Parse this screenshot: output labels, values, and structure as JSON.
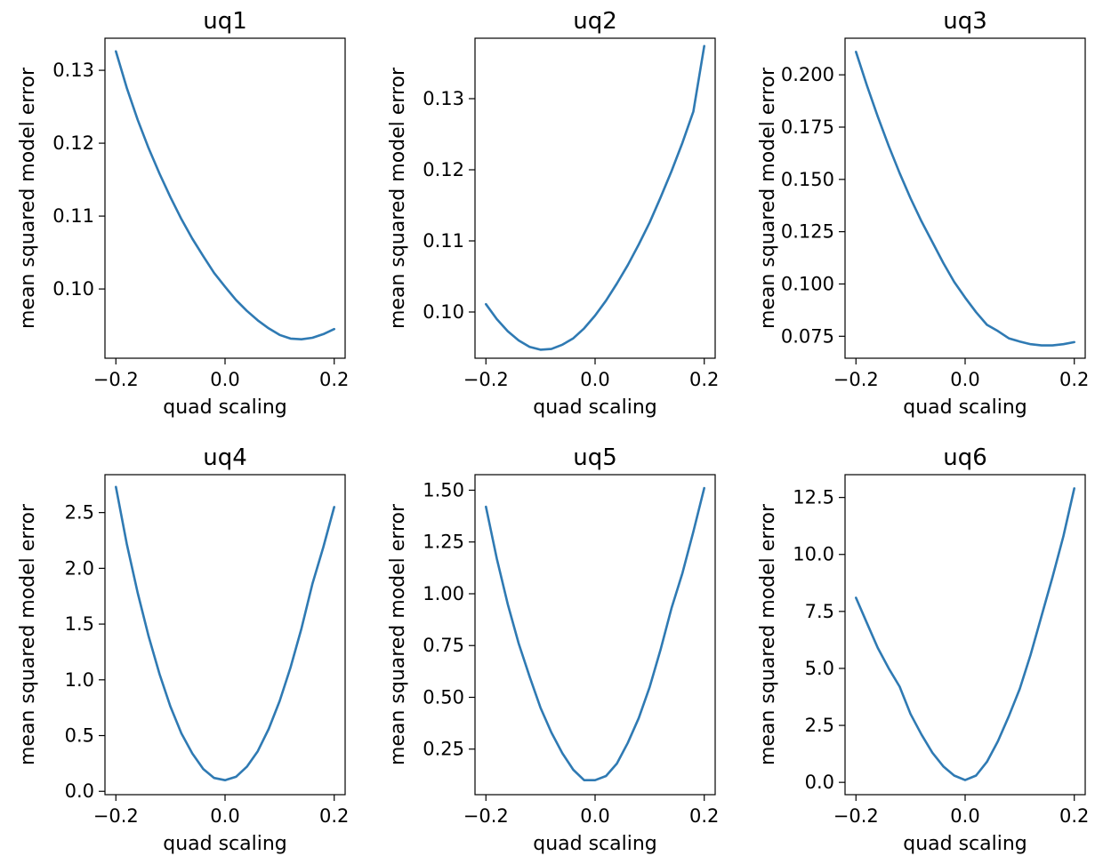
{
  "chart_data": [
    {
      "type": "line",
      "title": "uq1",
      "xlabel": "quad scaling",
      "ylabel": "mean squared model error",
      "xlim": [
        -0.22,
        0.22
      ],
      "ylim": [
        0.0905,
        0.1344
      ],
      "xticks": [
        -0.2,
        0.0,
        0.2
      ],
      "xtick_labels": [
        "−0.2",
        "0.0",
        "0.2"
      ],
      "yticks": [
        0.1,
        0.11,
        0.12,
        0.13
      ],
      "ytick_labels": [
        "0.10",
        "0.11",
        "0.12",
        "0.13"
      ],
      "grid": false,
      "series": [
        {
          "color": "#2f7ab3",
          "x": [
            -0.2,
            -0.18,
            -0.16,
            -0.14,
            -0.12,
            -0.1,
            -0.08,
            -0.06,
            -0.04,
            -0.02,
            0.0,
            0.02,
            0.04,
            0.06,
            0.08,
            0.1,
            0.12,
            0.14,
            0.16,
            0.18,
            0.2
          ],
          "y": [
            0.1326,
            0.1276,
            0.1232,
            0.1193,
            0.1158,
            0.1126,
            0.1096,
            0.1069,
            0.1045,
            0.1022,
            0.1003,
            0.0985,
            0.097,
            0.0957,
            0.0946,
            0.0937,
            0.0932,
            0.0931,
            0.0933,
            0.0938,
            0.0945
          ]
        }
      ]
    },
    {
      "type": "line",
      "title": "uq2",
      "xlabel": "quad scaling",
      "ylabel": "mean squared model error",
      "xlim": [
        -0.22,
        0.22
      ],
      "ylim": [
        0.0935,
        0.1385
      ],
      "xticks": [
        -0.2,
        0.0,
        0.2
      ],
      "xtick_labels": [
        "−0.2",
        "0.0",
        "0.2"
      ],
      "yticks": [
        0.1,
        0.11,
        0.12,
        0.13
      ],
      "ytick_labels": [
        "0.10",
        "0.11",
        "0.12",
        "0.13"
      ],
      "grid": false,
      "series": [
        {
          "color": "#2f7ab3",
          "x": [
            -0.2,
            -0.18,
            -0.16,
            -0.14,
            -0.12,
            -0.1,
            -0.08,
            -0.06,
            -0.04,
            -0.02,
            0.0,
            0.02,
            0.04,
            0.06,
            0.08,
            0.1,
            0.12,
            0.14,
            0.16,
            0.18,
            0.2
          ],
          "y": [
            0.1011,
            0.099,
            0.0973,
            0.096,
            0.0951,
            0.0947,
            0.0948,
            0.0954,
            0.0963,
            0.0977,
            0.0995,
            0.1016,
            0.104,
            0.1066,
            0.1095,
            0.1126,
            0.1161,
            0.1198,
            0.1238,
            0.1282,
            0.1374
          ]
        }
      ]
    },
    {
      "type": "line",
      "title": "uq3",
      "xlabel": "quad scaling",
      "ylabel": "mean squared model error",
      "xlim": [
        -0.22,
        0.22
      ],
      "ylim": [
        0.0645,
        0.2175
      ],
      "xticks": [
        -0.2,
        0.0,
        0.2
      ],
      "xtick_labels": [
        "−0.2",
        "0.0",
        "0.2"
      ],
      "yticks": [
        0.075,
        0.1,
        0.125,
        0.15,
        0.175,
        0.2
      ],
      "ytick_labels": [
        "0.075",
        "0.100",
        "0.125",
        "0.150",
        "0.175",
        "0.200"
      ],
      "grid": false,
      "series": [
        {
          "color": "#2f7ab3",
          "x": [
            -0.2,
            -0.18,
            -0.16,
            -0.14,
            -0.12,
            -0.1,
            -0.08,
            -0.06,
            -0.04,
            -0.02,
            0.0,
            0.02,
            0.04,
            0.06,
            0.08,
            0.1,
            0.12,
            0.14,
            0.16,
            0.18,
            0.2
          ],
          "y": [
            0.211,
            0.195,
            0.18,
            0.166,
            0.153,
            0.141,
            0.13,
            0.12,
            0.11,
            0.101,
            0.0935,
            0.0865,
            0.0805,
            0.0775,
            0.074,
            0.0725,
            0.0712,
            0.0706,
            0.0706,
            0.0712,
            0.0722
          ]
        }
      ]
    },
    {
      "type": "line",
      "title": "uq4",
      "xlabel": "quad scaling",
      "ylabel": "mean squared model error",
      "xlim": [
        -0.22,
        0.22
      ],
      "ylim": [
        -0.03,
        2.84
      ],
      "xticks": [
        -0.2,
        0.0,
        0.2
      ],
      "xtick_labels": [
        "−0.2",
        "0.0",
        "0.2"
      ],
      "yticks": [
        0.0,
        0.5,
        1.0,
        1.5,
        2.0,
        2.5
      ],
      "ytick_labels": [
        "0.0",
        "0.5",
        "1.0",
        "1.5",
        "2.0",
        "2.5"
      ],
      "grid": false,
      "series": [
        {
          "color": "#2f7ab3",
          "x": [
            -0.2,
            -0.18,
            -0.16,
            -0.14,
            -0.12,
            -0.1,
            -0.08,
            -0.06,
            -0.04,
            -0.02,
            0.0,
            0.02,
            0.04,
            0.06,
            0.08,
            0.1,
            0.12,
            0.14,
            0.16,
            0.18,
            0.2
          ],
          "y": [
            2.73,
            2.22,
            1.78,
            1.39,
            1.05,
            0.76,
            0.52,
            0.34,
            0.2,
            0.12,
            0.1,
            0.13,
            0.22,
            0.36,
            0.56,
            0.81,
            1.11,
            1.46,
            1.86,
            2.19,
            2.55
          ]
        }
      ]
    },
    {
      "type": "line",
      "title": "uq5",
      "xlabel": "quad scaling",
      "ylabel": "mean squared model error",
      "xlim": [
        -0.22,
        0.22
      ],
      "ylim": [
        0.03,
        1.575
      ],
      "xticks": [
        -0.2,
        0.0,
        0.2
      ],
      "xtick_labels": [
        "−0.2",
        "0.0",
        "0.2"
      ],
      "yticks": [
        0.25,
        0.5,
        0.75,
        1.0,
        1.25,
        1.5
      ],
      "ytick_labels": [
        "0.25",
        "0.50",
        "0.75",
        "1.00",
        "1.25",
        "1.50"
      ],
      "grid": false,
      "series": [
        {
          "color": "#2f7ab3",
          "x": [
            -0.2,
            -0.18,
            -0.16,
            -0.14,
            -0.12,
            -0.1,
            -0.08,
            -0.06,
            -0.04,
            -0.02,
            0.0,
            0.02,
            0.04,
            0.06,
            0.08,
            0.1,
            0.12,
            0.14,
            0.16,
            0.18,
            0.2
          ],
          "y": [
            1.42,
            1.17,
            0.95,
            0.76,
            0.6,
            0.45,
            0.33,
            0.23,
            0.15,
            0.1,
            0.1,
            0.12,
            0.18,
            0.28,
            0.4,
            0.55,
            0.73,
            0.93,
            1.1,
            1.3,
            1.51
          ]
        }
      ]
    },
    {
      "type": "line",
      "title": "uq6",
      "xlabel": "quad scaling",
      "ylabel": "mean squared model error",
      "xlim": [
        -0.22,
        0.22
      ],
      "ylim": [
        -0.54,
        13.5
      ],
      "xticks": [
        -0.2,
        0.0,
        0.2
      ],
      "xtick_labels": [
        "−0.2",
        "0.0",
        "0.2"
      ],
      "yticks": [
        0.0,
        2.5,
        5.0,
        7.5,
        10.0,
        12.5
      ],
      "ytick_labels": [
        "0.0",
        "2.5",
        "5.0",
        "7.5",
        "10.0",
        "12.5"
      ],
      "grid": false,
      "series": [
        {
          "color": "#2f7ab3",
          "x": [
            -0.2,
            -0.18,
            -0.16,
            -0.14,
            -0.12,
            -0.1,
            -0.08,
            -0.06,
            -0.04,
            -0.02,
            0.0,
            0.02,
            0.04,
            0.06,
            0.08,
            0.1,
            0.12,
            0.14,
            0.16,
            0.18,
            0.2
          ],
          "y": [
            8.1,
            7.0,
            5.9,
            5.0,
            4.2,
            3.0,
            2.1,
            1.3,
            0.7,
            0.3,
            0.1,
            0.3,
            0.9,
            1.8,
            2.9,
            4.1,
            5.6,
            7.3,
            9.0,
            10.8,
            12.9
          ]
        }
      ]
    }
  ]
}
